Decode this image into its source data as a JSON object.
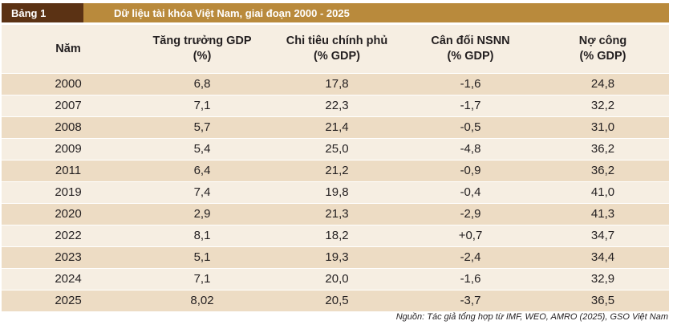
{
  "table": {
    "label": "Bảng 1",
    "title": "Dữ liệu tài khóa Việt Nam, giai đoạn 2000 - 2025",
    "headers": [
      {
        "line1": "Năm",
        "line2": ""
      },
      {
        "line1": "Tăng trưởng GDP",
        "line2": "(%)"
      },
      {
        "line1": "Chi tiêu chính phủ",
        "line2": "(% GDP)"
      },
      {
        "line1": "Cân đối NSNN",
        "line2": "(% GDP)"
      },
      {
        "line1": "Nợ công",
        "line2": "(% GDP)"
      }
    ],
    "rows": [
      [
        "2000",
        "6,8",
        "17,8",
        "-1,6",
        "24,8"
      ],
      [
        "2007",
        "7,1",
        "22,3",
        "-1,7",
        "32,2"
      ],
      [
        "2008",
        "5,7",
        "21,4",
        "-0,5",
        "31,0"
      ],
      [
        "2009",
        "5,4",
        "25,0",
        "-4,8",
        "36,2"
      ],
      [
        "2011",
        "6,4",
        "21,2",
        "-0,9",
        "36,2"
      ],
      [
        "2019",
        "7,4",
        "19,8",
        "-0,4",
        "41,0"
      ],
      [
        "2020",
        "2,9",
        "21,3",
        "-2,9",
        "41,3"
      ],
      [
        "2022",
        "8,1",
        "18,2",
        "+0,7",
        "34,7"
      ],
      [
        "2023",
        "5,1",
        "19,3",
        "-2,4",
        "34,4"
      ],
      [
        "2024",
        "7,1",
        "20,0",
        "-1,6",
        "32,9"
      ],
      [
        "2025",
        "8,02",
        "20,5",
        "-3,7",
        "36,5"
      ]
    ],
    "source": "Nguồn: Tác giả tổng hợp từ IMF, WEO, AMRO (2025), GSO Việt Nam"
  },
  "colors": {
    "badge_bg": "#5b3214",
    "title_bg": "#b98a3c",
    "row_dark": "#eddcc4",
    "row_light": "#f6eee2"
  }
}
